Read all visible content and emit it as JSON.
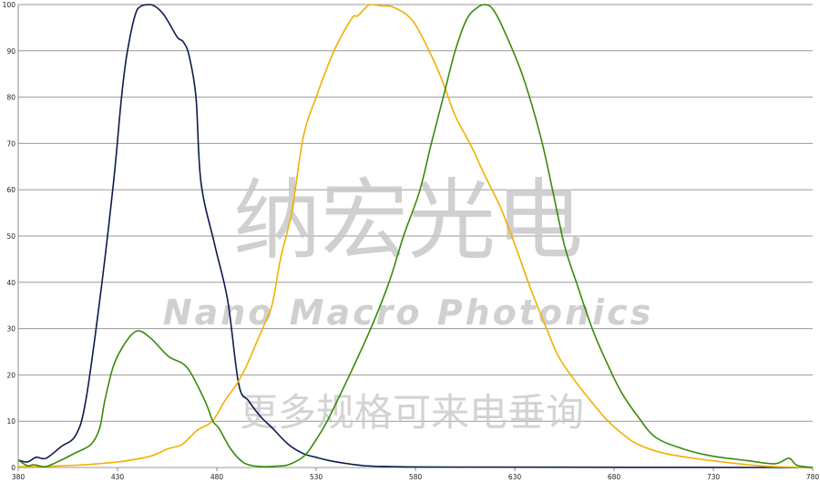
{
  "chart_data": {
    "type": "line",
    "title": "",
    "xlabel": "",
    "ylabel": "",
    "xlim": [
      380,
      780
    ],
    "ylim": [
      0,
      100
    ],
    "x_ticks": [
      380,
      430,
      480,
      530,
      580,
      630,
      680,
      730,
      780
    ],
    "y_ticks": [
      0,
      10,
      20,
      30,
      40,
      50,
      60,
      70,
      80,
      90,
      100
    ],
    "grid": "horizontal",
    "legend": "none",
    "series": [
      {
        "color": "#0d1b4d",
        "points": [
          [
            380,
            1.6
          ],
          [
            384.6,
            1.2
          ],
          [
            389,
            2.2
          ],
          [
            394,
            2
          ],
          [
            401.6,
            4.5
          ],
          [
            409,
            7
          ],
          [
            414,
            14.4
          ],
          [
            421,
            36
          ],
          [
            428,
            61.6
          ],
          [
            432,
            80
          ],
          [
            435,
            90
          ],
          [
            440,
            99
          ],
          [
            446.5,
            100
          ],
          [
            453,
            98
          ],
          [
            460,
            93
          ],
          [
            463,
            92
          ],
          [
            466,
            89
          ],
          [
            469.5,
            80
          ],
          [
            472,
            61.6
          ],
          [
            479,
            48
          ],
          [
            485.5,
            36
          ],
          [
            491,
            18
          ],
          [
            496,
            14.4
          ],
          [
            502,
            11
          ],
          [
            508,
            8.5
          ],
          [
            516,
            5
          ],
          [
            523.6,
            3
          ],
          [
            530,
            2.2
          ],
          [
            539,
            1.3
          ],
          [
            554,
            0.4
          ],
          [
            569,
            0.2
          ],
          [
            600,
            0.1
          ],
          [
            780,
            0
          ]
        ]
      },
      {
        "color": "#f2b000",
        "points": [
          [
            380,
            0.2
          ],
          [
            391,
            0.2
          ],
          [
            409,
            0.5
          ],
          [
            420,
            0.8
          ],
          [
            432,
            1.3
          ],
          [
            447,
            2.5
          ],
          [
            455,
            4
          ],
          [
            462.6,
            5
          ],
          [
            470,
            8
          ],
          [
            477.7,
            10
          ],
          [
            484,
            14.4
          ],
          [
            490,
            18
          ],
          [
            495,
            22
          ],
          [
            500,
            27
          ],
          [
            504,
            31
          ],
          [
            508,
            35.4
          ],
          [
            512,
            45
          ],
          [
            517.6,
            55
          ],
          [
            523.6,
            71.5
          ],
          [
            530,
            80
          ],
          [
            539,
            90
          ],
          [
            548,
            97
          ],
          [
            551,
            97.6
          ],
          [
            557,
            100
          ],
          [
            563,
            99.7
          ],
          [
            569,
            99.4
          ],
          [
            578.6,
            96.5
          ],
          [
            588,
            89
          ],
          [
            594,
            83
          ],
          [
            600,
            76
          ],
          [
            608,
            69.5
          ],
          [
            615,
            63
          ],
          [
            623,
            56
          ],
          [
            631,
            47
          ],
          [
            638,
            38.6
          ],
          [
            646,
            30
          ],
          [
            652,
            24
          ],
          [
            661,
            18.3
          ],
          [
            669,
            14
          ],
          [
            677,
            10
          ],
          [
            685,
            7
          ],
          [
            692,
            5
          ],
          [
            706,
            3
          ],
          [
            729,
            1.5
          ],
          [
            756,
            0.3
          ],
          [
            780,
            0
          ]
        ]
      },
      {
        "color": "#3a8a0a",
        "points": [
          [
            380,
            1.6
          ],
          [
            384.6,
            0.4
          ],
          [
            388,
            0.6
          ],
          [
            393.8,
            0.2
          ],
          [
            401.6,
            1.6
          ],
          [
            409,
            3.2
          ],
          [
            416.7,
            5
          ],
          [
            421,
            8.5
          ],
          [
            423.6,
            14.4
          ],
          [
            428,
            22
          ],
          [
            434,
            27
          ],
          [
            440,
            29.5
          ],
          [
            446.5,
            28
          ],
          [
            455.7,
            24
          ],
          [
            465,
            21.6
          ],
          [
            474,
            14.4
          ],
          [
            478,
            10
          ],
          [
            481,
            8.5
          ],
          [
            487,
            4
          ],
          [
            493,
            1.2
          ],
          [
            498,
            0.4
          ],
          [
            504,
            0.2
          ],
          [
            510,
            0.3
          ],
          [
            516,
            0.6
          ],
          [
            524,
            2.5
          ],
          [
            530,
            6
          ],
          [
            536,
            10.4
          ],
          [
            546.5,
            19.7
          ],
          [
            557.5,
            30
          ],
          [
            566.7,
            40
          ],
          [
            574,
            50
          ],
          [
            582,
            59.6
          ],
          [
            588,
            70
          ],
          [
            594,
            80
          ],
          [
            600,
            90
          ],
          [
            606,
            97
          ],
          [
            612,
            99.6
          ],
          [
            615,
            100
          ],
          [
            619,
            99
          ],
          [
            624.5,
            94.5
          ],
          [
            634,
            84.6
          ],
          [
            643,
            71.5
          ],
          [
            649,
            60
          ],
          [
            655,
            48
          ],
          [
            661,
            40
          ],
          [
            669,
            30
          ],
          [
            677,
            22
          ],
          [
            684,
            16
          ],
          [
            692,
            11
          ],
          [
            701,
            6.5
          ],
          [
            715,
            4
          ],
          [
            729,
            2.5
          ],
          [
            747,
            1.5
          ],
          [
            761,
            0.8
          ],
          [
            768,
            2
          ],
          [
            772,
            0.5
          ],
          [
            780,
            0
          ]
        ]
      }
    ]
  },
  "watermark": {
    "line1": "纳宏光电",
    "line2": "Nano Macro Photonics",
    "line3": "更多规格可来电垂询"
  }
}
